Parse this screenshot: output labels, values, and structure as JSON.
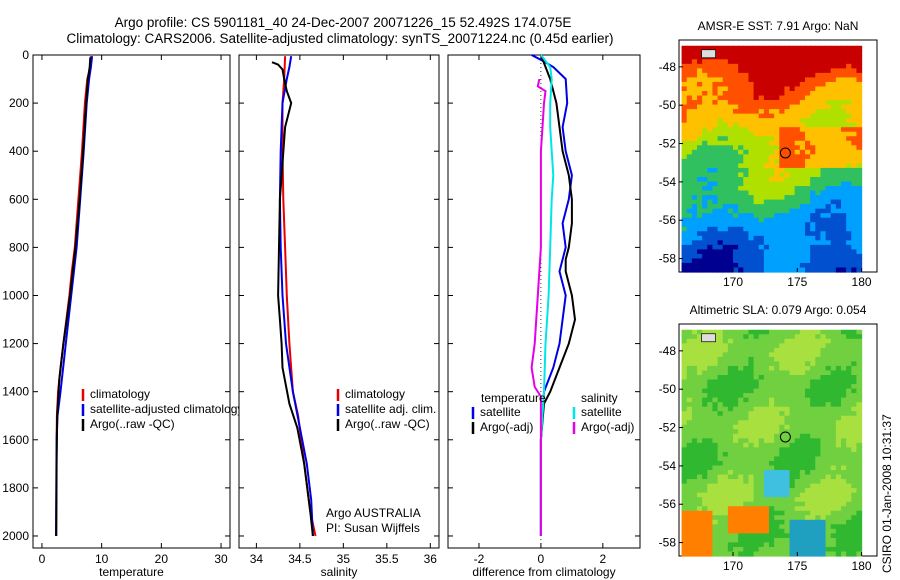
{
  "header": {
    "title_line1": "Argo profile: CS 5901181_40 24-Dec-2007 20071226_15 52.492S 174.075E",
    "title_line2": "Climatology: CARS2006. Satellite-adjusted climatology: synTS_20071224.nc (0.45d earlier)"
  },
  "footer": {
    "argo_label": "Argo AUSTRALIA",
    "pi_label": "PI: Susan Wijffels",
    "credit": "CSIRO 01-Jan-2008 10:31:37"
  },
  "colors": {
    "climatology": "#e60000",
    "satellite": "#0000e6",
    "argo": "#000000",
    "temp_diff_sat": "#0000e6",
    "temp_diff_argo": "#000000",
    "sal_diff_sat": "#00e6e6",
    "sal_diff_argo": "#e600e6"
  },
  "chart_data": [
    {
      "type": "line",
      "xlabel": "temperature",
      "ylabel": "",
      "xlim": [
        -1.5,
        31.5
      ],
      "ylim": [
        0,
        2050
      ],
      "y_reversed": true,
      "xticks": [
        0,
        10,
        20,
        30
      ],
      "yticks": [
        0,
        200,
        400,
        600,
        800,
        1000,
        1200,
        1400,
        1600,
        1800,
        2000
      ],
      "legend": [
        "climatology",
        "satellite-adjusted climatology",
        "Argo(..raw -QC)"
      ],
      "series": [
        {
          "name": "climatology",
          "color": "#e60000",
          "x": [
            8.2,
            8.1,
            7.6,
            7.2,
            6.7,
            6.1,
            5.5,
            5.0,
            4.6,
            4.1,
            3.6,
            3.1,
            2.7,
            2.5,
            2.45
          ],
          "y": [
            5,
            50,
            100,
            200,
            400,
            600,
            800,
            900,
            1000,
            1100,
            1200,
            1300,
            1400,
            1500,
            1600
          ]
        },
        {
          "name": "satellite-adjusted climatology",
          "color": "#0000e6",
          "x": [
            8.4,
            8.2,
            7.9,
            7.5,
            7.0,
            6.4,
            5.8,
            4.9,
            4.0,
            3.1,
            2.6,
            2.45,
            2.4,
            2.35
          ],
          "y": [
            5,
            50,
            100,
            200,
            400,
            600,
            800,
            1000,
            1200,
            1400,
            1500,
            1600,
            1800,
            2000
          ]
        },
        {
          "name": "Argo(..raw -QC)",
          "color": "#000000",
          "x": [
            8.1,
            8.0,
            7.7,
            7.4,
            6.9,
            6.3,
            5.6,
            4.7,
            3.6,
            2.9,
            2.55,
            2.45,
            2.4
          ],
          "y": [
            10,
            50,
            100,
            200,
            400,
            600,
            800,
            1000,
            1200,
            1350,
            1500,
            1700,
            2000
          ]
        }
      ]
    },
    {
      "type": "line",
      "xlabel": "salinity",
      "ylabel": "",
      "xlim": [
        33.8,
        36.1
      ],
      "ylim": [
        0,
        2050
      ],
      "y_reversed": true,
      "xticks": [
        34,
        34.5,
        35,
        35.5,
        36
      ],
      "legend": [
        "climatology",
        "satellite adj. clim.",
        "Argo(..raw -QC)"
      ],
      "series": [
        {
          "name": "climatology",
          "color": "#e60000",
          "x": [
            34.33,
            34.32,
            34.3,
            34.3,
            34.31,
            34.33,
            34.35,
            34.38,
            34.42,
            34.48,
            34.55,
            34.62,
            34.68
          ],
          "y": [
            5,
            100,
            200,
            400,
            600,
            800,
            1000,
            1200,
            1400,
            1500,
            1700,
            1900,
            2000
          ]
        },
        {
          "name": "satellite adj. clim.",
          "color": "#0000e6",
          "x": [
            34.4,
            34.38,
            34.35,
            34.3,
            34.28,
            34.27,
            34.28,
            34.3,
            34.34,
            34.42,
            34.5,
            34.58,
            34.63,
            34.65
          ],
          "y": [
            5,
            50,
            100,
            200,
            400,
            600,
            800,
            1000,
            1200,
            1400,
            1550,
            1700,
            1850,
            2000
          ]
        },
        {
          "name": "Argo(..raw -QC)",
          "color": "#000000",
          "x": [
            34.18,
            34.25,
            34.3,
            34.32,
            34.35,
            34.4,
            34.33,
            34.3,
            34.27,
            34.26,
            34.25,
            34.27,
            34.29,
            34.3,
            34.38,
            34.47,
            34.55,
            34.62,
            34.65
          ],
          "y": [
            30,
            40,
            60,
            100,
            150,
            200,
            300,
            450,
            600,
            800,
            1000,
            1100,
            1200,
            1300,
            1450,
            1550,
            1700,
            1900,
            2000
          ]
        }
      ]
    },
    {
      "type": "line",
      "xlabel": "difference from climatology",
      "ylabel": "",
      "xlim": [
        -3,
        3.2
      ],
      "ylim": [
        0,
        2050
      ],
      "y_reversed": true,
      "xticks": [
        -2,
        0,
        2
      ],
      "legend": [
        "temperature",
        "satellite",
        "Argo(-adj)",
        "salinity",
        "satellite",
        "Argo(-adj)"
      ],
      "series": [
        {
          "name": "satellite",
          "group": "temperature",
          "color": "#0000e6",
          "x": [
            -0.3,
            0.0,
            0.4,
            0.8,
            0.85,
            0.7,
            0.8,
            1.0,
            0.9,
            0.7,
            0.8,
            0.6,
            0.8,
            0.7,
            0.6,
            0.4,
            0.1,
            0.0,
            0.0
          ],
          "y": [
            0,
            20,
            50,
            100,
            200,
            300,
            400,
            500,
            600,
            700,
            800,
            900,
            1000,
            1100,
            1200,
            1300,
            1400,
            1600,
            2000
          ]
        },
        {
          "name": "Argo(-adj)",
          "group": "temperature",
          "color": "#000000",
          "x": [
            0.0,
            0.3,
            0.5,
            0.6,
            0.7,
            0.9,
            1.0,
            1.0,
            0.9,
            0.8,
            0.8,
            1.0,
            1.1,
            0.9,
            0.6,
            0.3,
            0.1,
            0.0,
            0.0
          ],
          "y": [
            0,
            100,
            200,
            300,
            400,
            500,
            600,
            700,
            800,
            850,
            900,
            1000,
            1100,
            1200,
            1300,
            1400,
            1450,
            1600,
            2000
          ]
        },
        {
          "name": "satellite",
          "group": "salinity",
          "color": "#00e6e6",
          "x": [
            0.0,
            0.3,
            0.35,
            0.3,
            0.3,
            0.35,
            0.4,
            0.35,
            0.3,
            0.25,
            0.2,
            0.15,
            0.1,
            0.0,
            0.0
          ],
          "y": [
            0,
            50,
            100,
            200,
            300,
            400,
            500,
            600,
            800,
            1000,
            1100,
            1200,
            1400,
            1600,
            2000
          ]
        },
        {
          "name": "Argo(-adj)",
          "group": "salinity",
          "color": "#e600e6",
          "x": [
            -0.05,
            -0.1,
            0.15,
            0.1,
            0.05,
            0.0,
            0.0,
            0.0,
            -0.1,
            -0.2,
            -0.3,
            -0.2,
            0.0,
            0.0
          ],
          "y": [
            100,
            130,
            150,
            200,
            300,
            400,
            600,
            800,
            1000,
            1200,
            1300,
            1380,
            1420,
            2000
          ]
        }
      ]
    },
    {
      "type": "heatmap",
      "title": "AMSR-E SST: 7.91 Argo: NaN",
      "xlim": [
        165.8,
        181.2
      ],
      "ylim": [
        -58.7,
        -46.6
      ],
      "xticks": [
        170,
        175,
        180
      ],
      "yticks": [
        -48,
        -50,
        -52,
        -54,
        -56,
        -58
      ],
      "marker": {
        "lon": 174.075,
        "lat": -52.492
      },
      "color_bands": [
        "#c80000",
        "#ff5000",
        "#ffc000",
        "#b0e000",
        "#30c060",
        "#00a0ff",
        "#0050d0",
        "#000090"
      ]
    },
    {
      "type": "heatmap",
      "title": "Altimetric SLA: 0.079 Argo: 0.054",
      "xlim": [
        165.8,
        181.2
      ],
      "ylim": [
        -58.7,
        -46.6
      ],
      "xticks": [
        170,
        175,
        180
      ],
      "yticks": [
        -48,
        -50,
        -52,
        -54,
        -56,
        -58
      ],
      "marker": {
        "lon": 174.075,
        "lat": -52.492
      },
      "color_bands": [
        "#30b830",
        "#70d040",
        "#a8e040",
        "#ffd000",
        "#ff8000",
        "#40c0e0",
        "#20a0c0"
      ]
    }
  ]
}
